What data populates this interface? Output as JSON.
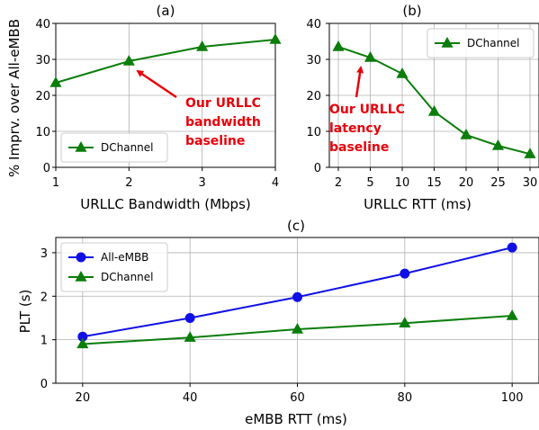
{
  "colors": {
    "dchannel": "#0a7d0a",
    "allembb": "#1010e6",
    "annotation": "#e8000b",
    "grid": "#b0b0b0"
  },
  "shared_ylabel": "% Imprv. over All-eMBB",
  "chart_data": [
    {
      "id": "a",
      "type": "line",
      "title": "(a)",
      "xlabel": "URLLC Bandwidth (Mbps)",
      "ylabel": "% Imprv. over All-eMBB",
      "xlim": [
        1,
        4
      ],
      "ylim": [
        0,
        40
      ],
      "xticks": [
        1,
        2,
        3,
        4
      ],
      "yticks": [
        0,
        10,
        20,
        30,
        40
      ],
      "grid": true,
      "legend_position": "lower-left",
      "series": [
        {
          "name": "DChannel",
          "marker": "triangle",
          "x": [
            1,
            2,
            3,
            4
          ],
          "y": [
            23.5,
            29.5,
            33.5,
            35.5
          ]
        }
      ],
      "annotation": {
        "lines": [
          "Our URLLC",
          "bandwidth",
          "baseline"
        ],
        "points_to": {
          "x": 2,
          "y": 29.5
        }
      }
    },
    {
      "id": "b",
      "type": "line",
      "title": "(b)",
      "xlabel": "URLLC RTT (ms)",
      "ylabel": "",
      "categories": [
        "2",
        "5",
        "10",
        "15",
        "20",
        "25",
        "30"
      ],
      "ylim": [
        0,
        40
      ],
      "yticks": [
        0,
        10,
        20,
        30,
        40
      ],
      "grid": true,
      "legend_position": "upper-right",
      "series": [
        {
          "name": "DChannel",
          "marker": "triangle",
          "values": [
            33.5,
            30.5,
            26,
            15.5,
            9,
            6,
            3.7
          ]
        }
      ],
      "annotation": {
        "lines": [
          "Our URLLC",
          "latency",
          "baseline"
        ],
        "points_to": {
          "category": "5",
          "y": 30.5
        }
      }
    },
    {
      "id": "c",
      "type": "line",
      "title": "(c)",
      "xlabel": "eMBB RTT (ms)",
      "ylabel": "PLT (s)",
      "xlim": [
        15,
        105
      ],
      "ylim": [
        0,
        3.35
      ],
      "xticks": [
        20,
        40,
        60,
        80,
        100
      ],
      "yticks": [
        0,
        1,
        2,
        3
      ],
      "grid": true,
      "legend_position": "upper-left",
      "series": [
        {
          "name": "All-eMBB",
          "marker": "circle",
          "x": [
            20,
            40,
            60,
            80,
            100
          ],
          "y": [
            1.07,
            1.5,
            1.98,
            2.52,
            3.12
          ]
        },
        {
          "name": "DChannel",
          "marker": "triangle",
          "x": [
            20,
            40,
            60,
            80,
            100
          ],
          "y": [
            0.9,
            1.05,
            1.24,
            1.38,
            1.55
          ]
        }
      ]
    }
  ]
}
